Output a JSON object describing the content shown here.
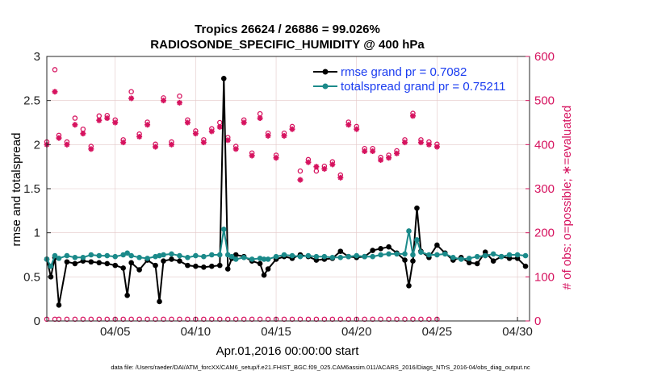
{
  "chart_data": {
    "type": "line",
    "title_line1": "Tropics 26624 / 26886 = 99.026%",
    "title_line2": "RADIOSONDE_SPECIFIC_HUMIDITY @ 400 hPa",
    "xlabel": "Apr.01,2016 00:00:00 start",
    "ylabel_left": "rmse and totalspread",
    "ylabel_right": "# of obs: o=possible; ∗=evaluated",
    "footer": "data file: /Users/raeder/DAI/ATM_forcXX/CAM6_setup/f.e21.FHIST_BGC.f09_025.CAM6assim.011/ACARS_2016/Diags_NTrS_2016-04/obs_diag_output.nc",
    "xlim": [
      0.75,
      30.75
    ],
    "ylim_left": [
      0,
      3
    ],
    "ylim_right": [
      0,
      600
    ],
    "x_ticks": [
      {
        "x": 5,
        "label": "04/05"
      },
      {
        "x": 10,
        "label": "04/10"
      },
      {
        "x": 15,
        "label": "04/15"
      },
      {
        "x": 20,
        "label": "04/20"
      },
      {
        "x": 25,
        "label": "04/25"
      },
      {
        "x": 30,
        "label": "04/30"
      }
    ],
    "y_ticks_left": [
      {
        "v": 0,
        "label": "0"
      },
      {
        "v": 0.5,
        "label": "0.5"
      },
      {
        "v": 1,
        "label": "1"
      },
      {
        "v": 1.5,
        "label": "1.5"
      },
      {
        "v": 2,
        "label": "2"
      },
      {
        "v": 2.5,
        "label": "2.5"
      },
      {
        "v": 3,
        "label": "3"
      }
    ],
    "y_ticks_right": [
      {
        "v": 0,
        "label": "0"
      },
      {
        "v": 100,
        "label": "100"
      },
      {
        "v": 200,
        "label": "200"
      },
      {
        "v": 300,
        "label": "300"
      },
      {
        "v": 400,
        "label": "400"
      },
      {
        "v": 500,
        "label": "500"
      },
      {
        "v": 600,
        "label": "600"
      }
    ],
    "x": [
      0.75,
      1,
      1.25,
      1.5,
      2,
      2.5,
      3,
      3.5,
      4,
      4.5,
      5,
      5.5,
      5.75,
      6,
      6.5,
      7,
      7.5,
      7.75,
      8,
      8.5,
      9,
      9.5,
      10,
      10.5,
      11,
      11.5,
      11.75,
      12,
      12.25,
      12.5,
      13,
      13.5,
      14,
      14.25,
      14.5,
      15,
      15.5,
      16,
      16.5,
      17,
      17.5,
      18,
      18.5,
      19,
      19.5,
      20,
      20.5,
      21,
      21.5,
      22,
      22.5,
      23,
      23.25,
      23.5,
      23.75,
      24,
      24.5,
      25,
      25.5,
      26,
      26.5,
      27,
      27.5,
      28,
      28.5,
      29,
      29.5,
      30,
      30.5
    ],
    "series": [
      {
        "name": "rmse grand pr = 0.7082",
        "color": "#000000",
        "values": [
          0.7,
          0.5,
          0.72,
          0.18,
          0.67,
          0.65,
          0.68,
          0.67,
          0.66,
          0.65,
          0.63,
          0.6,
          0.29,
          0.66,
          0.58,
          0.69,
          0.63,
          0.22,
          0.68,
          0.7,
          0.68,
          0.63,
          0.62,
          0.61,
          0.62,
          0.63,
          2.75,
          0.59,
          0.71,
          0.75,
          0.73,
          0.68,
          0.65,
          0.52,
          0.59,
          0.7,
          0.73,
          0.71,
          0.75,
          0.73,
          0.69,
          0.7,
          0.71,
          0.79,
          0.73,
          0.72,
          0.73,
          0.8,
          0.82,
          0.84,
          0.77,
          0.69,
          0.4,
          0.68,
          1.28,
          0.79,
          0.72,
          0.86,
          0.77,
          0.69,
          0.72,
          0.66,
          0.65,
          0.78,
          0.68,
          0.73,
          0.71,
          0.71,
          0.62
        ]
      },
      {
        "name": "totalspread grand pr = 0.75211",
        "color": "#1b8a8a",
        "values": [
          0.7,
          0.62,
          0.74,
          0.71,
          0.74,
          0.72,
          0.72,
          0.75,
          0.74,
          0.74,
          0.73,
          0.75,
          0.77,
          0.74,
          0.72,
          0.71,
          0.73,
          0.74,
          0.75,
          0.76,
          0.74,
          0.72,
          0.74,
          0.73,
          0.75,
          0.75,
          1.04,
          0.75,
          0.73,
          0.7,
          0.72,
          0.7,
          0.71,
          0.7,
          0.7,
          0.73,
          0.75,
          0.74,
          0.73,
          0.74,
          0.73,
          0.73,
          0.72,
          0.72,
          0.73,
          0.74,
          0.73,
          0.73,
          0.75,
          0.76,
          0.76,
          0.76,
          1.02,
          0.75,
          0.92,
          0.78,
          0.75,
          0.75,
          0.76,
          0.72,
          0.7,
          0.71,
          0.73,
          0.74,
          0.76,
          0.73,
          0.75,
          0.75,
          0.74
        ]
      }
    ],
    "obs_evaluated": [
      400,
      520,
      415,
      400,
      445,
      425,
      390,
      455,
      460,
      450,
      405,
      505,
      418,
      445,
      395,
      500,
      400,
      495,
      450,
      425,
      405,
      430,
      440,
      410,
      390,
      450,
      375,
      460,
      420,
      370,
      420,
      435,
      320,
      360,
      350,
      345,
      355,
      325,
      445,
      435,
      385,
      385,
      365,
      370,
      380,
      405,
      465,
      405,
      400,
      395
    ],
    "obs_possible": [
      null,
      570,
      null,
      null,
      460,
      435,
      null,
      465,
      null,
      null,
      null,
      520,
      null,
      null,
      null,
      null,
      null,
      510,
      null,
      null,
      null,
      null,
      450,
      null,
      null,
      null,
      null,
      470,
      null,
      null,
      null,
      null,
      340,
      null,
      340,
      null,
      null,
      null,
      null,
      null,
      null,
      null,
      null,
      null,
      null,
      null,
      null,
      null,
      null,
      null,
      null,
      null,
      null,
      null,
      null,
      null,
      null,
      null,
      null,
      null,
      null,
      null,
      null,
      null,
      null,
      null,
      null,
      null,
      null
    ],
    "obs_x": [
      0.75,
      1.25,
      1.5,
      2,
      2.5,
      3,
      3.5,
      4,
      4.5,
      5,
      5.5,
      6,
      6.5,
      7,
      7.5,
      8,
      8.5,
      9,
      9.5,
      10,
      10.5,
      11,
      11.5,
      12,
      12.5,
      13,
      13.5,
      14,
      14.5,
      15,
      15.5,
      16,
      16.5,
      17,
      17.5,
      18,
      18.5,
      19,
      19.5,
      20,
      20.5,
      21,
      21.5,
      22,
      22.5,
      23,
      23.5,
      24,
      24.5,
      25
    ],
    "obs_color": "#d6135f"
  }
}
